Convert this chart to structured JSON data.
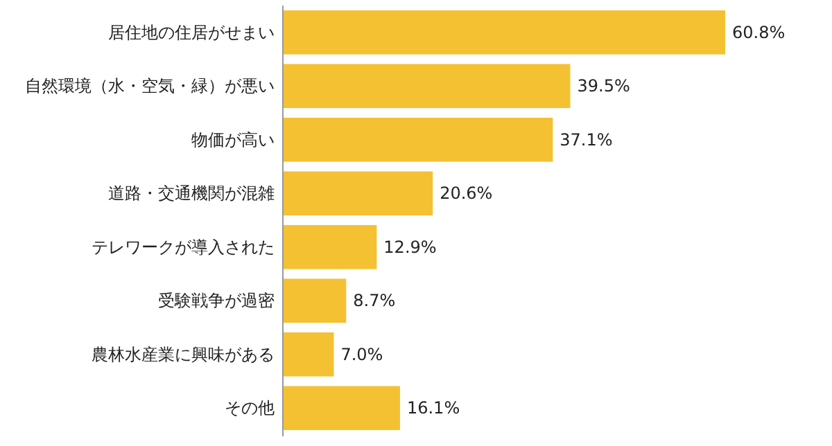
{
  "chart_data": {
    "type": "bar",
    "orientation": "horizontal",
    "color": "#f4c133",
    "categories": [
      "居住地の住居がせまい",
      "自然環境（水・空気・緑）が悪い",
      "物価が高い",
      "道路・交通機関が混雑",
      "テレワークが導入された",
      "受験戦争が過密",
      "農林水産業に興味がある",
      "その他"
    ],
    "values": [
      60.8,
      39.5,
      37.1,
      20.6,
      12.9,
      8.7,
      7.0,
      16.1
    ],
    "value_labels": [
      "60.8%",
      "39.5%",
      "37.1%",
      "20.6%",
      "12.9%",
      "8.7%",
      "7.0%",
      "16.1%"
    ]
  }
}
